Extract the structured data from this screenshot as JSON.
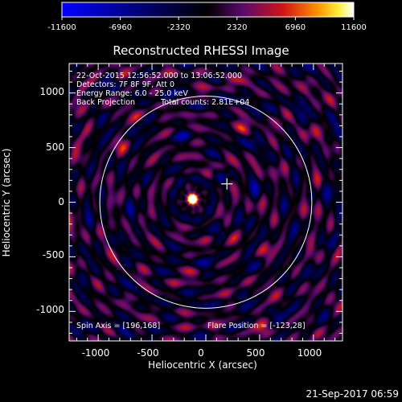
{
  "colorbar": {
    "ticks": [
      "-11600",
      "-6960",
      "-2320",
      "2320",
      "6960",
      "11600"
    ]
  },
  "title": "Reconstructed RHESSI Image",
  "info": {
    "line1": "22-Oct-2015 12:56:52.000 to 13:06:52.000",
    "line2": "Detectors: 7F 8F 9F, Att 0",
    "line3": "Energy Range: 6.0 - 25.0 keV",
    "line4_left": "Back Projection",
    "line4_right": "Total counts: 2.81E+04"
  },
  "footer": {
    "spin_axis": "Spin Axis = [196,168]",
    "flare_position": "Flare Position = [-123,28]"
  },
  "axes": {
    "xlabel": "Heliocentric X (arcsec)",
    "ylabel": "Heliocentric Y (arcsec)",
    "x_ticks": [
      "-1000",
      "-500",
      "0",
      "500",
      "1000"
    ],
    "y_ticks": [
      "1000",
      "500",
      "0",
      "-500",
      "-1000"
    ]
  },
  "timestamp": "21-Sep-2017 06:59",
  "colors": {
    "background": "#000000",
    "foreground": "#ffffff"
  },
  "chart_data": {
    "type": "heatmap",
    "xlim": [
      -1270,
      1270
    ],
    "ylim": [
      -1270,
      1270
    ],
    "x_ticks": [
      -1000,
      -500,
      0,
      500,
      1000
    ],
    "y_ticks": [
      -1000,
      -500,
      0,
      500,
      1000
    ],
    "colorbar_range": [
      -11600,
      11600
    ],
    "colormap": "blue-black-purple-red-orange-yellow-white",
    "solar_limb_radius_arcsec": 985,
    "flare_position": [
      -123,
      28
    ],
    "spin_axis": [
      196,
      168
    ],
    "marker_position": [
      196,
      168
    ]
  }
}
